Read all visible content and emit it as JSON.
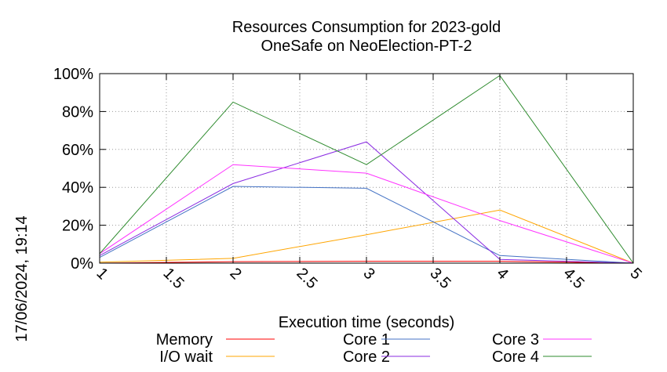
{
  "chart_data": {
    "type": "line",
    "title": [
      "Resources Consumption for 2023-gold",
      "OneSafe on NeoElection-PT-2"
    ],
    "xlabel": "Execution time (seconds)",
    "ylabel": "",
    "side_label": "17/06/2024, 19:14",
    "xlim": [
      1,
      5
    ],
    "ylim": [
      0,
      100
    ],
    "x_ticks": [
      1,
      1.5,
      2,
      2.5,
      3,
      3.5,
      4,
      4.5,
      5
    ],
    "x_tick_labels": [
      "1",
      "1.5",
      "2",
      "2.5",
      "3",
      "3.5",
      "4",
      "4.5",
      "5"
    ],
    "y_ticks": [
      0,
      20,
      40,
      60,
      80,
      100
    ],
    "y_tick_labels": [
      "0%",
      "20%",
      "40%",
      "60%",
      "80%",
      "100%"
    ],
    "grid": true,
    "legend_position": "bottom",
    "x": [
      1,
      2,
      3,
      4,
      5
    ],
    "series": [
      {
        "name": "Memory",
        "color": "#ff0000",
        "values": [
          0,
          0.8,
          1,
          1,
          0
        ]
      },
      {
        "name": "I/O wait",
        "color": "#ffa500",
        "values": [
          0.5,
          2.5,
          15,
          28,
          0
        ]
      },
      {
        "name": "Core 1",
        "color": "#4472c4",
        "values": [
          3,
          40.5,
          39.5,
          4,
          0
        ]
      },
      {
        "name": "Core 2",
        "color": "#8a2be2",
        "values": [
          4,
          42,
          64,
          2,
          0
        ]
      },
      {
        "name": "Core 3",
        "color": "#ff33ff",
        "values": [
          5,
          52,
          47.5,
          22.5,
          0
        ]
      },
      {
        "name": "Core 4",
        "color": "#2e8b2e",
        "values": [
          5,
          85,
          52,
          99,
          0
        ]
      }
    ]
  }
}
